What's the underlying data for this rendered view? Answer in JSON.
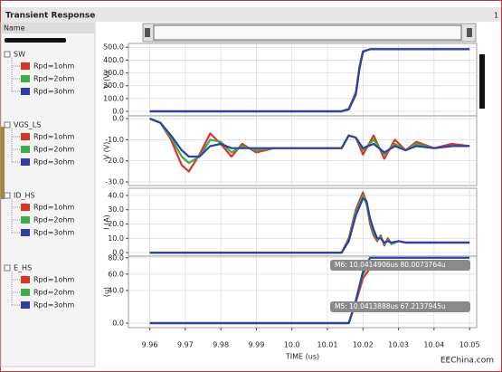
{
  "window": {
    "title": "Transient Response",
    "page": "1",
    "panel_header": "Name",
    "watermark": "EEChina.com"
  },
  "chart_data": [
    {
      "type": "line",
      "title": "SW",
      "ylabel": "V (V)",
      "xlim": [
        9.954,
        10.052
      ],
      "ylim": [
        -35,
        530
      ],
      "grid": true,
      "yticks": [
        {
          "value": 0,
          "label": "0.0"
        },
        {
          "value": 100,
          "label": "100.0"
        },
        {
          "value": 200,
          "label": "200.0"
        },
        {
          "value": 300,
          "label": "300.0"
        },
        {
          "value": 400,
          "label": "400.0"
        },
        {
          "value": 500,
          "label": "500.0"
        }
      ],
      "x": [
        9.96,
        10.014,
        10.016,
        10.018,
        10.019,
        10.02,
        10.022,
        10.05
      ],
      "series": [
        {
          "name": "Rpd=1ohm",
          "color": "#e0302a",
          "values": [
            0,
            0,
            20,
            150,
            350,
            470,
            485,
            485
          ]
        },
        {
          "name": "Rpd=2ohm",
          "color": "#3cb043",
          "values": [
            0,
            0,
            18,
            140,
            340,
            468,
            485,
            485
          ]
        },
        {
          "name": "Rpd=3ohm",
          "color": "#2f3fa8",
          "values": [
            0,
            0,
            15,
            130,
            330,
            465,
            485,
            485
          ]
        }
      ]
    },
    {
      "type": "line",
      "title": "VGS_LS",
      "ylabel": "V (V)",
      "xlim": [
        9.954,
        10.052
      ],
      "ylim": [
        -31.7,
        1.3
      ],
      "grid": true,
      "yticks": [
        {
          "value": 0,
          "label": "0.0"
        },
        {
          "value": -10,
          "label": "-10.0"
        },
        {
          "value": -20,
          "label": "-20.0"
        },
        {
          "value": -30,
          "label": "-30.0"
        }
      ],
      "x": [
        9.96,
        9.963,
        9.966,
        9.969,
        9.971,
        9.974,
        9.977,
        9.98,
        9.983,
        9.986,
        9.99,
        9.995,
        10.0,
        10.005,
        10.01,
        10.014,
        10.016,
        10.018,
        10.02,
        10.023,
        10.026,
        10.029,
        10.032,
        10.035,
        10.04,
        10.045,
        10.05
      ],
      "series": [
        {
          "name": "Rpd=1ohm",
          "color": "#e0302a",
          "values": [
            0,
            -2,
            -10,
            -22,
            -25,
            -17,
            -7,
            -12,
            -18,
            -12,
            -16,
            -14,
            -14,
            -14,
            -14,
            -14,
            -8,
            -9,
            -17,
            -8,
            -19,
            -10,
            -15,
            -11,
            -14,
            -12,
            -13
          ]
        },
        {
          "name": "Rpd=2ohm",
          "color": "#3cb043",
          "values": [
            0,
            -2,
            -9,
            -18,
            -21,
            -18,
            -10,
            -11,
            -16,
            -13,
            -15,
            -14,
            -14,
            -14,
            -14,
            -14,
            -8,
            -9,
            -15,
            -10,
            -17,
            -12,
            -15,
            -12,
            -14,
            -13,
            -13
          ]
        },
        {
          "name": "Rpd=3ohm",
          "color": "#2f3fa8",
          "values": [
            0,
            -2,
            -8,
            -15,
            -18,
            -18,
            -13,
            -12,
            -14,
            -14,
            -14,
            -14,
            -14,
            -14,
            -14,
            -14,
            -8,
            -9,
            -14,
            -12,
            -16,
            -13,
            -15,
            -13,
            -14,
            -13,
            -13
          ]
        }
      ]
    },
    {
      "type": "line",
      "title": "ID_HS",
      "ylabel": "I (A)",
      "xlim": [
        9.954,
        10.052
      ],
      "ylim": [
        -2.5,
        45
      ],
      "grid": true,
      "yticks": [
        {
          "value": 0,
          "label": "0.0"
        },
        {
          "value": 10,
          "label": "10.0"
        },
        {
          "value": 20,
          "label": "20.0"
        },
        {
          "value": 30,
          "label": "30.0"
        },
        {
          "value": 40,
          "label": "40.0"
        }
      ],
      "x": [
        9.96,
        10.014,
        10.016,
        10.018,
        10.02,
        10.021,
        10.022,
        10.023,
        10.024,
        10.025,
        10.026,
        10.027,
        10.028,
        10.03,
        10.032,
        10.035,
        10.04,
        10.05
      ],
      "series": [
        {
          "name": "Rpd=1ohm",
          "color": "#e0302a",
          "values": [
            0,
            0,
            10,
            30,
            42,
            35,
            20,
            12,
            8,
            12,
            5,
            10,
            6,
            8,
            7,
            7,
            7,
            7
          ]
        },
        {
          "name": "Rpd=2ohm",
          "color": "#3cb043",
          "values": [
            0,
            0,
            9,
            28,
            40,
            34,
            22,
            14,
            9,
            11,
            6,
            9,
            6,
            8,
            7,
            7,
            7,
            7
          ]
        },
        {
          "name": "Rpd=3ohm",
          "color": "#2f3fa8",
          "values": [
            0,
            0,
            8,
            26,
            38,
            36,
            24,
            16,
            10,
            10,
            7,
            8,
            7,
            8,
            7,
            7,
            7,
            7
          ]
        }
      ]
    },
    {
      "type": "line",
      "title": "E_HS",
      "ylabel": "(u)",
      "xlabel": "TIME (us)",
      "xlim": [
        9.954,
        10.052
      ],
      "ylim": [
        -5.5,
        82
      ],
      "grid": true,
      "yticks": [
        {
          "value": 0,
          "label": "0.0"
        },
        {
          "value": 40,
          "label": "40.0"
        },
        {
          "value": 60,
          "label": "60.0"
        },
        {
          "value": 80,
          "label": "80.0"
        }
      ],
      "xticks": [
        9.96,
        9.97,
        9.98,
        9.99,
        {
          "value": 10,
          "label": "10.0"
        },
        10.01,
        10.02,
        10.03,
        10.04,
        10.05
      ],
      "annotations": [
        "M6: 10.0414906us 80.0073764u",
        "M5: 10.0413888us 67.2137945u"
      ],
      "x": [
        9.96,
        10.016,
        10.018,
        10.02,
        10.022,
        10.05
      ],
      "series": [
        {
          "name": "Rpd=1ohm",
          "color": "#e0302a",
          "values": [
            0,
            0,
            25,
            55,
            67,
            67
          ]
        },
        {
          "name": "Rpd=2ohm",
          "color": "#3cb043",
          "values": [
            0,
            0,
            27,
            60,
            74,
            74
          ]
        },
        {
          "name": "Rpd=3ohm",
          "color": "#2f3fa8",
          "values": [
            0,
            0,
            28,
            63,
            80,
            80
          ]
        }
      ]
    }
  ]
}
